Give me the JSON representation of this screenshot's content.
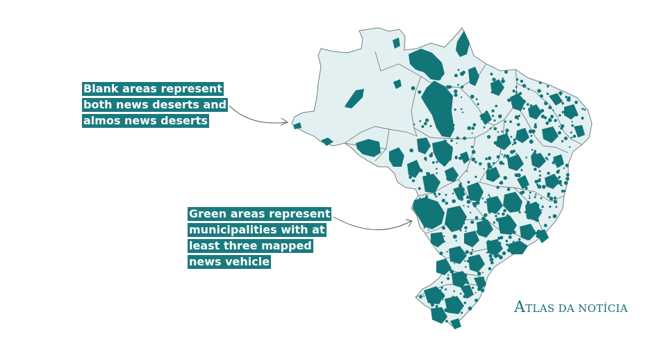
{
  "annotations": {
    "blank_areas": "Blank areas represent both news deserts and almos news deserts",
    "green_areas": "Green areas represent municipalities with at least three mapped news vehicle"
  },
  "logo": {
    "first_letter": "A",
    "rest": "tlas da notícia"
  },
  "colors": {
    "land": "#e3f0f2",
    "border": "#6f7f82",
    "news_present": "#127578",
    "label_background": "#1a7b7e",
    "logo": "#1a6f72"
  },
  "legend": {
    "blank": "news deserts and almost news deserts",
    "green": "municipalities with at least three mapped news vehicles"
  }
}
